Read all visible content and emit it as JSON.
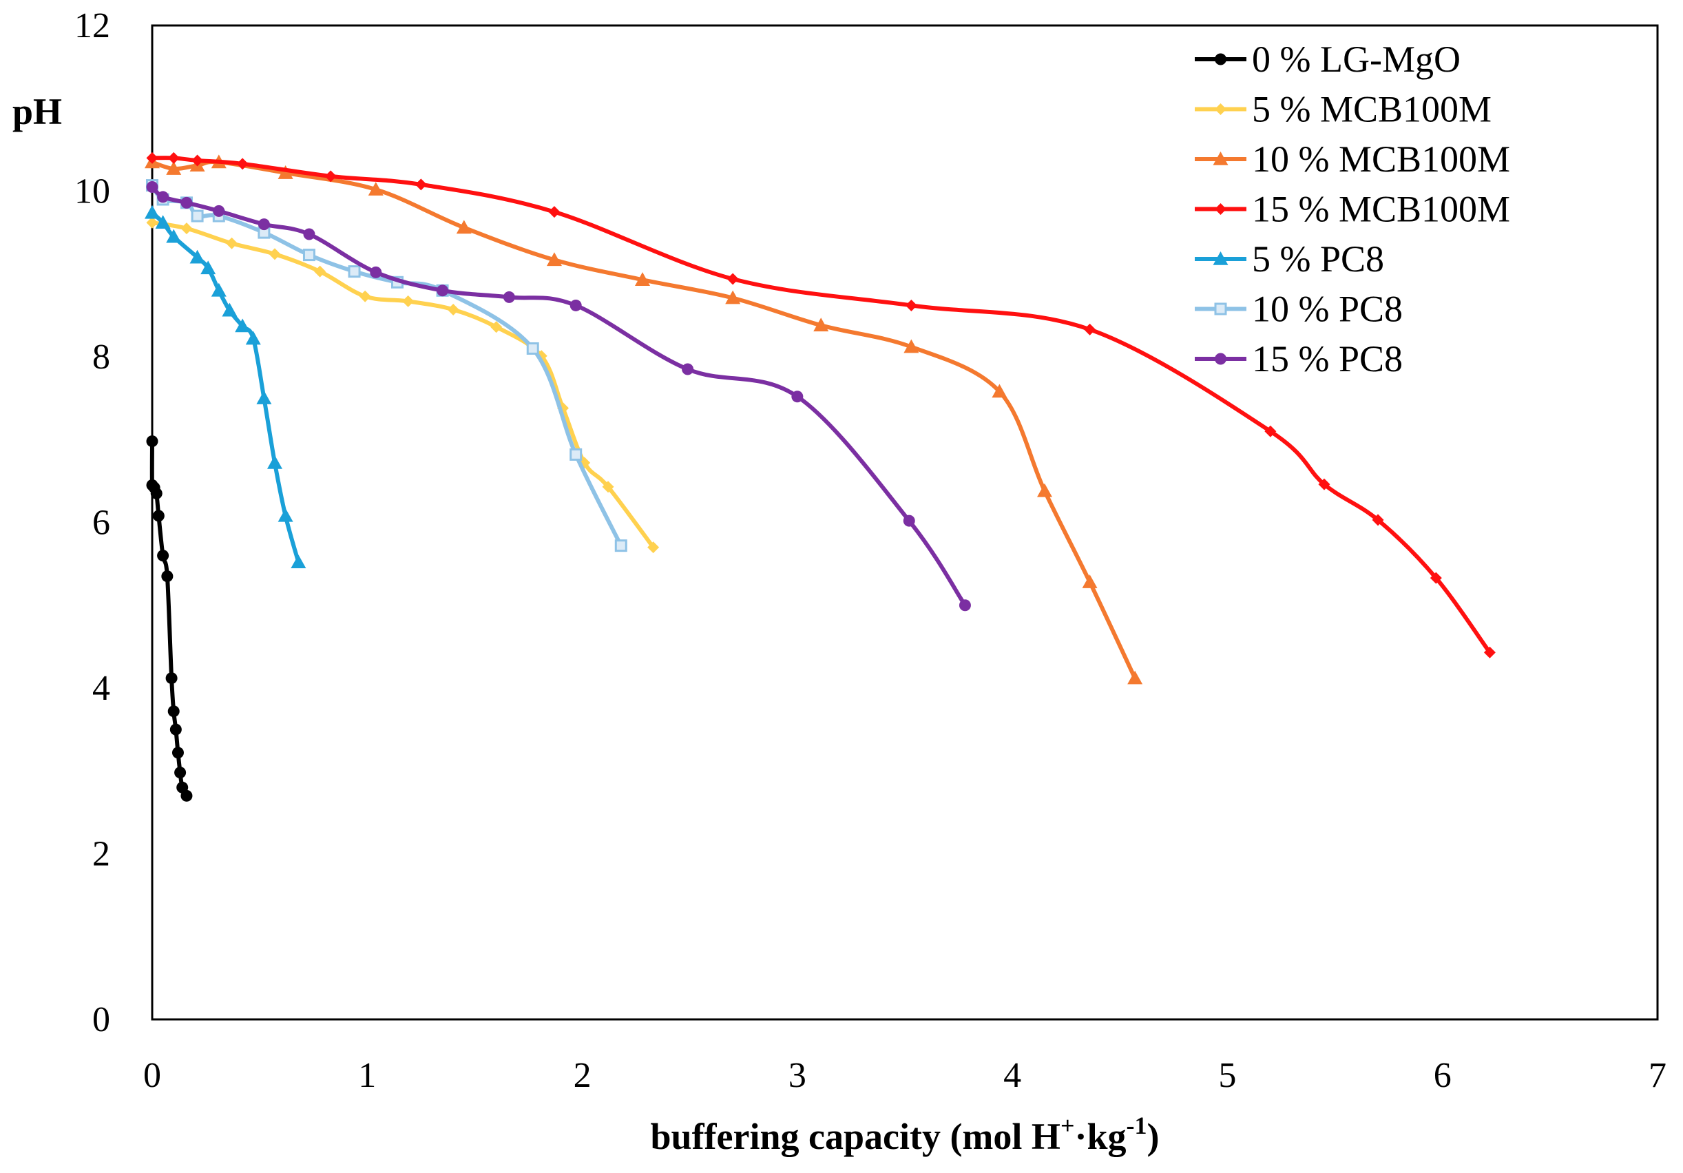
{
  "chart_data": {
    "type": "line",
    "title": "",
    "xlabel": "buffering capacity (mol H⁺·kg⁻¹)",
    "xlabel_parts": {
      "main": "buffering capacity (mol H",
      "sup1": "+",
      "mid": "·kg",
      "sup2": "-1",
      "end": ")"
    },
    "ylabel": "pH",
    "xlim": [
      0,
      7
    ],
    "ylim": [
      0,
      12
    ],
    "xticks": [
      0,
      1,
      2,
      3,
      4,
      5,
      6,
      7
    ],
    "yticks": [
      0,
      2,
      4,
      6,
      8,
      10,
      12
    ],
    "grid": false,
    "legend_position": "top-right",
    "series": [
      {
        "name": "0 % LG-MgO",
        "color": "#000000",
        "marker": "circle",
        "x": [
          0.0,
          0.0,
          0.01,
          0.02,
          0.03,
          0.05,
          0.07,
          0.09,
          0.1,
          0.11,
          0.12,
          0.13,
          0.14,
          0.16
        ],
        "y": [
          6.98,
          6.45,
          6.42,
          6.35,
          6.08,
          5.6,
          5.35,
          4.12,
          3.72,
          3.5,
          3.22,
          2.98,
          2.8,
          2.7
        ]
      },
      {
        "name": "5 % MCB100M",
        "color": "#FFD14F",
        "marker": "diamond",
        "x": [
          0.0,
          0.16,
          0.37,
          0.57,
          0.78,
          0.99,
          1.19,
          1.4,
          1.6,
          1.81,
          1.91,
          2.01,
          2.12,
          2.33
        ],
        "y": [
          9.62,
          9.55,
          9.37,
          9.24,
          9.03,
          8.73,
          8.67,
          8.57,
          8.36,
          8.01,
          7.38,
          6.72,
          6.43,
          5.7
        ]
      },
      {
        "name": "10 % MCB100M",
        "color": "#F4792F",
        "marker": "triangle",
        "x": [
          0.0,
          0.1,
          0.21,
          0.31,
          0.62,
          1.04,
          1.45,
          1.87,
          2.28,
          2.7,
          3.11,
          3.53,
          3.94,
          4.15,
          4.36,
          4.57
        ],
        "y": [
          10.35,
          10.27,
          10.31,
          10.35,
          10.22,
          10.02,
          9.56,
          9.17,
          8.93,
          8.71,
          8.38,
          8.12,
          7.58,
          6.38,
          5.28,
          4.12
        ]
      },
      {
        "name": "15 % MCB100M",
        "color": "#FF1010",
        "marker": "diamond",
        "x": [
          0.0,
          0.1,
          0.21,
          0.42,
          0.83,
          1.25,
          1.87,
          2.7,
          3.53,
          4.36,
          5.2,
          5.45,
          5.7,
          5.97,
          6.22
        ],
        "y": [
          10.4,
          10.4,
          10.37,
          10.33,
          10.18,
          10.08,
          9.75,
          8.94,
          8.62,
          8.33,
          7.1,
          6.46,
          6.03,
          5.33,
          4.43
        ]
      },
      {
        "name": "5 % PC8",
        "color": "#1AA0D8",
        "marker": "triangle",
        "x": [
          0.0,
          0.05,
          0.1,
          0.21,
          0.26,
          0.31,
          0.36,
          0.42,
          0.47,
          0.52,
          0.57,
          0.62,
          0.68
        ],
        "y": [
          9.74,
          9.62,
          9.45,
          9.2,
          9.07,
          8.8,
          8.56,
          8.37,
          8.22,
          7.5,
          6.72,
          6.08,
          5.52
        ]
      },
      {
        "name": "10 % PC8",
        "color": "#8EC2E6",
        "marker": "square",
        "x": [
          0.0,
          0.05,
          0.16,
          0.21,
          0.31,
          0.52,
          0.73,
          0.94,
          1.14,
          1.35,
          1.77,
          1.97,
          2.18
        ],
        "y": [
          10.07,
          9.9,
          9.86,
          9.7,
          9.7,
          9.5,
          9.23,
          9.03,
          8.9,
          8.8,
          8.1,
          6.82,
          5.72
        ]
      },
      {
        "name": "15 % PC8",
        "color": "#7B2FA2",
        "marker": "circle",
        "x": [
          0.0,
          0.05,
          0.16,
          0.31,
          0.52,
          0.73,
          1.04,
          1.35,
          1.66,
          1.97,
          2.49,
          3.0,
          3.52,
          3.78
        ],
        "y": [
          10.05,
          9.93,
          9.86,
          9.76,
          9.6,
          9.48,
          9.02,
          8.8,
          8.72,
          8.62,
          7.85,
          7.52,
          6.02,
          5.0
        ]
      }
    ]
  }
}
